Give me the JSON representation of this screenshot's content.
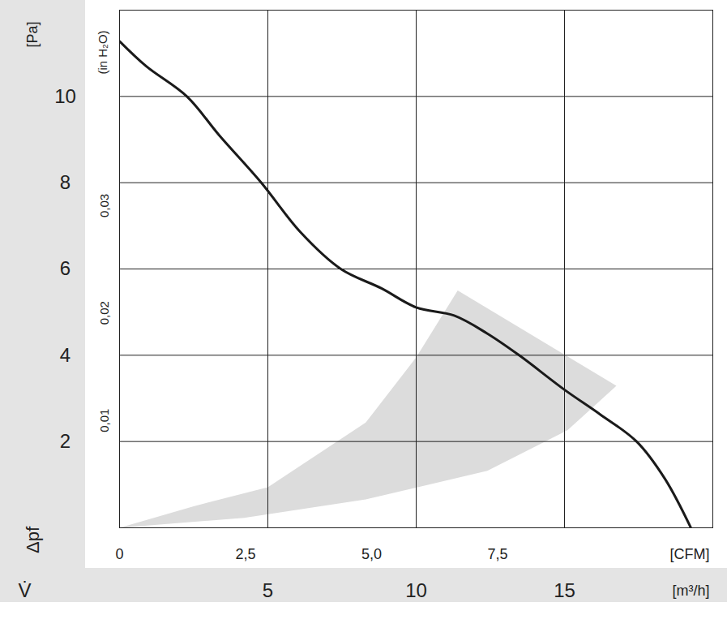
{
  "chart_data": {
    "type": "line",
    "x_label": "[m³/h]",
    "x_symbol": "V̇",
    "x2_label": "[CFM]",
    "y_label": "[Pa]",
    "y_symbol": "Δpf",
    "y2_label": "(in H₂O)",
    "x": [
      0,
      0.9,
      2.27,
      3.36,
      4.78,
      6.09,
      7.46,
      8.83,
      10,
      11.28,
      12.38,
      13.47,
      15,
      16.2,
      17.43,
      18.39,
      19.26
    ],
    "series": [
      {
        "name": "Δpf",
        "color": "#1a1a1a",
        "values": [
          11.28,
          10.7,
          10,
          9.1,
          8.0,
          6.86,
          6.0,
          5.55,
          5.11,
          4.92,
          4.51,
          4.0,
          3.2,
          2.63,
          2.0,
          1.13,
          0
        ]
      }
    ],
    "operating_area": {
      "x": [
        0,
        2.5,
        5,
        8.3,
        10,
        11.4,
        16.75,
        15.1,
        12.4,
        8.3,
        4.2,
        0
      ],
      "y": [
        0,
        0.5,
        0.94,
        2.44,
        3.95,
        5.5,
        3.29,
        2.26,
        1.32,
        0.66,
        0.23,
        0
      ],
      "color": "#dcdcdc"
    },
    "xlim": [
      0,
      20
    ],
    "xticks": [
      5,
      10,
      15
    ],
    "x2lim": [
      0,
      11.77
    ],
    "x2ticks": [
      {
        "value": 0,
        "label": "0"
      },
      {
        "value": 2.5,
        "label": "2,5"
      },
      {
        "value": 5.0,
        "label": "5,0"
      },
      {
        "value": 7.5,
        "label": "7,5"
      }
    ],
    "ylim": [
      0,
      12
    ],
    "yticks": [
      2,
      4,
      6,
      8,
      10
    ],
    "y2lim": [
      0,
      0.0482
    ],
    "y2ticks": [
      {
        "value": 0.01,
        "label": "0,01"
      },
      {
        "value": 0.02,
        "label": "0,02"
      },
      {
        "value": 0.03,
        "label": "0,03"
      }
    ],
    "grid": true
  }
}
